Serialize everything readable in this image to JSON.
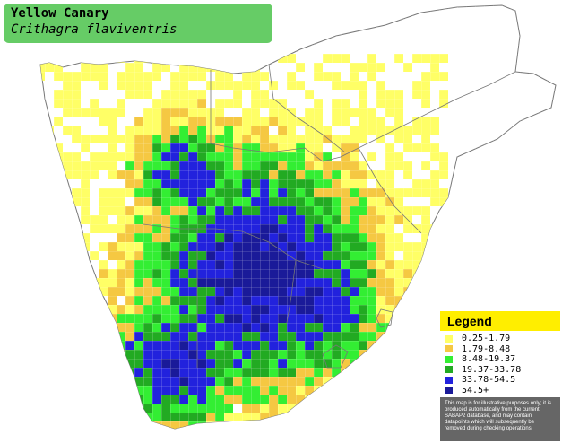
{
  "title": {
    "common_name": "Yellow Canary",
    "scientific_name": "Crithagra flaviventris"
  },
  "legend": {
    "heading": "Legend",
    "items": [
      {
        "label": "0.25-1.79",
        "color": "#ffff66"
      },
      {
        "label": "1.79-8.48",
        "color": "#f5c842"
      },
      {
        "label": "8.48-19.37",
        "color": "#33ee33"
      },
      {
        "label": "19.37-33.78",
        "color": "#22aa22"
      },
      {
        "label": "33.78-54.5",
        "color": "#2222dd"
      },
      {
        "label": "54.5+",
        "color": "#1a1a99"
      }
    ],
    "note": "This map is for illustrative purposes only; it is produced automatically from the current SABAP2 database, and may contain datapoints which will subsequently be removed during checking operations."
  },
  "map_colors": {
    "water": "#ffffff",
    "land": "#ffffff",
    "border": "#777777"
  }
}
